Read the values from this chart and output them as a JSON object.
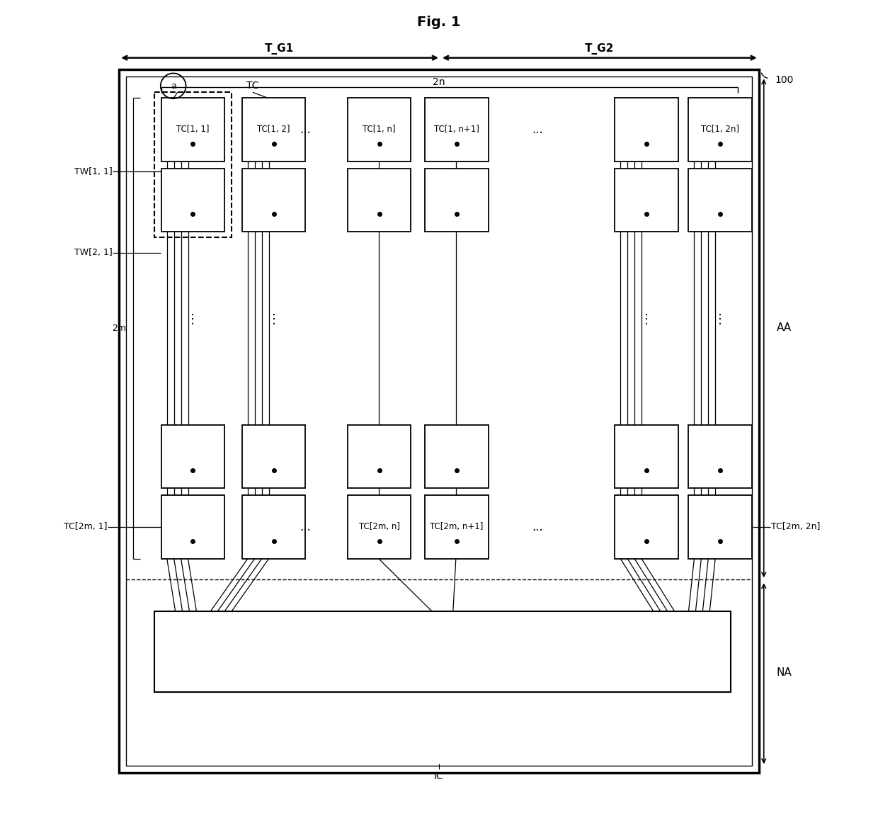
{
  "title": "Fig. 1",
  "fig_width": 12.4,
  "fig_height": 11.76,
  "bg_color": "#ffffff",
  "line_color": "#000000",
  "labels": {
    "fig_title": "Fig. 1",
    "T_G1": "T_G1",
    "T_G2": "T_G2",
    "TC": "TC",
    "a_label": "a",
    "two_n": "2n",
    "two_m": "2m",
    "TW11": "TW[1, 1]",
    "TW21": "TW[2, 1]",
    "TC11": "TC[1, 1]",
    "TC12": "TC[1, 2]",
    "TC1n": "TC[1, n]",
    "TC1n1": "TC[1, n+1]",
    "TC12n": "TC[1, 2n]",
    "TC2m1": "TC[2m, 1]",
    "TC2mn": "TC[2m, n]",
    "TC2mn1": "TC[2m, n+1]",
    "TC2m2n": "TC[2m, 2n]",
    "label_100": "100",
    "label_AA": "AA",
    "label_NA": "NA",
    "label_IC": "IC"
  }
}
